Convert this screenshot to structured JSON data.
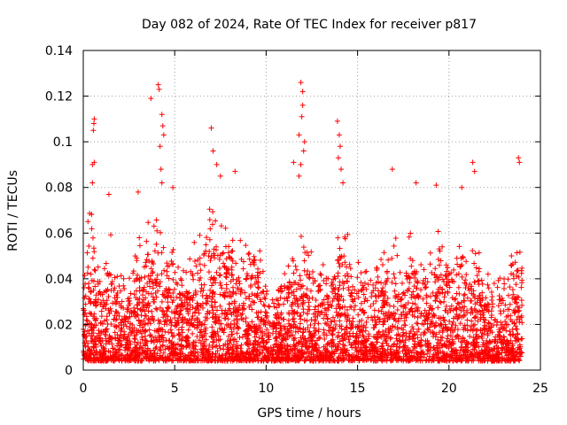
{
  "chart_data": {
    "type": "scatter",
    "title": "Day 082 of 2024, Rate Of TEC Index for receiver p817",
    "xlabel": "GPS time / hours",
    "ylabel": "ROTI / TECUs",
    "xlim": [
      0,
      25
    ],
    "ylim": [
      0,
      0.14
    ],
    "x_ticks": [
      "0",
      "5",
      "10",
      "15",
      "20",
      "25"
    ],
    "y_ticks": [
      "0",
      "0.02",
      "0.04",
      "0.06",
      "0.08",
      "0.1",
      "0.12",
      "0.14"
    ],
    "grid": true,
    "marker": "+",
    "marker_color": "#ff0000",
    "envelope": {
      "x": [
        0,
        0.3,
        0.5,
        1.0,
        1.5,
        2.0,
        2.5,
        3.0,
        3.5,
        4.0,
        4.5,
        5.0,
        5.5,
        6.0,
        6.5,
        7.0,
        7.5,
        8.0,
        8.5,
        9.0,
        9.5,
        10.0,
        10.5,
        11.0,
        11.5,
        12.0,
        12.5,
        13.0,
        13.5,
        14.0,
        14.5,
        15.0,
        15.5,
        16.0,
        16.5,
        17.0,
        17.5,
        18.0,
        18.5,
        19.0,
        19.5,
        20.0,
        20.5,
        21.0,
        21.5,
        22.0,
        22.5,
        23.0,
        23.5,
        24.0
      ],
      "max": [
        0.05,
        0.08,
        0.07,
        0.05,
        0.06,
        0.045,
        0.05,
        0.065,
        0.07,
        0.075,
        0.07,
        0.06,
        0.045,
        0.06,
        0.065,
        0.075,
        0.07,
        0.065,
        0.06,
        0.065,
        0.07,
        0.04,
        0.035,
        0.055,
        0.06,
        0.065,
        0.06,
        0.05,
        0.045,
        0.07,
        0.065,
        0.05,
        0.045,
        0.06,
        0.055,
        0.065,
        0.05,
        0.07,
        0.06,
        0.055,
        0.065,
        0.06,
        0.055,
        0.065,
        0.06,
        0.05,
        0.045,
        0.04,
        0.055,
        0.06
      ]
    },
    "outliers": [
      {
        "x": 0.5,
        "y": 0.09
      },
      {
        "x": 0.5,
        "y": 0.082
      },
      {
        "x": 0.6,
        "y": 0.091
      },
      {
        "x": 0.55,
        "y": 0.105
      },
      {
        "x": 0.6,
        "y": 0.11
      },
      {
        "x": 0.58,
        "y": 0.108
      },
      {
        "x": 1.4,
        "y": 0.077
      },
      {
        "x": 3.0,
        "y": 0.078
      },
      {
        "x": 3.7,
        "y": 0.119
      },
      {
        "x": 4.1,
        "y": 0.125
      },
      {
        "x": 4.15,
        "y": 0.123
      },
      {
        "x": 4.3,
        "y": 0.112
      },
      {
        "x": 4.35,
        "y": 0.107
      },
      {
        "x": 4.4,
        "y": 0.103
      },
      {
        "x": 4.2,
        "y": 0.098
      },
      {
        "x": 4.25,
        "y": 0.088
      },
      {
        "x": 4.3,
        "y": 0.082
      },
      {
        "x": 4.9,
        "y": 0.08
      },
      {
        "x": 7.0,
        "y": 0.106
      },
      {
        "x": 7.1,
        "y": 0.096
      },
      {
        "x": 7.3,
        "y": 0.09
      },
      {
        "x": 7.5,
        "y": 0.085
      },
      {
        "x": 8.3,
        "y": 0.087
      },
      {
        "x": 11.5,
        "y": 0.091
      },
      {
        "x": 11.8,
        "y": 0.103
      },
      {
        "x": 11.9,
        "y": 0.126
      },
      {
        "x": 12.0,
        "y": 0.122
      },
      {
        "x": 12.0,
        "y": 0.116
      },
      {
        "x": 11.95,
        "y": 0.111
      },
      {
        "x": 12.1,
        "y": 0.1
      },
      {
        "x": 12.05,
        "y": 0.096
      },
      {
        "x": 11.9,
        "y": 0.09
      },
      {
        "x": 11.8,
        "y": 0.085
      },
      {
        "x": 13.9,
        "y": 0.109
      },
      {
        "x": 14.0,
        "y": 0.103
      },
      {
        "x": 14.05,
        "y": 0.098
      },
      {
        "x": 13.95,
        "y": 0.093
      },
      {
        "x": 14.1,
        "y": 0.088
      },
      {
        "x": 14.2,
        "y": 0.082
      },
      {
        "x": 16.9,
        "y": 0.088
      },
      {
        "x": 18.2,
        "y": 0.082
      },
      {
        "x": 19.3,
        "y": 0.081
      },
      {
        "x": 20.7,
        "y": 0.08
      },
      {
        "x": 21.3,
        "y": 0.091
      },
      {
        "x": 21.4,
        "y": 0.087
      },
      {
        "x": 23.8,
        "y": 0.093
      },
      {
        "x": 23.85,
        "y": 0.091
      }
    ]
  }
}
